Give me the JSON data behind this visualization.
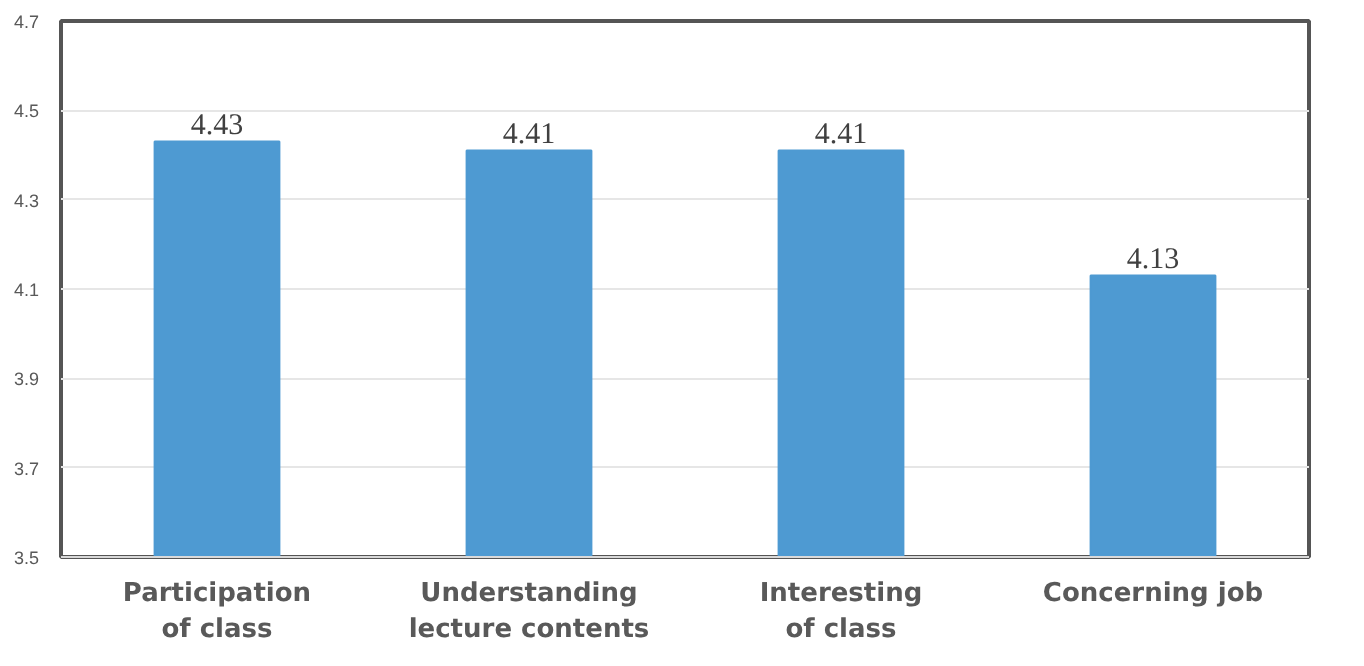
{
  "chart_data": {
    "type": "bar",
    "categories": [
      "Participation\nof class",
      "Understanding\nlecture contents",
      "Interesting\nof class",
      "Concerning job"
    ],
    "values": [
      4.43,
      4.41,
      4.41,
      4.13
    ],
    "color": "#4e9ad2",
    "ylim": [
      3.5,
      4.7
    ],
    "yticks": [
      3.5,
      3.7,
      3.9,
      4.1,
      4.3,
      4.5,
      4.7
    ],
    "grid": "y",
    "data_labels": true
  }
}
